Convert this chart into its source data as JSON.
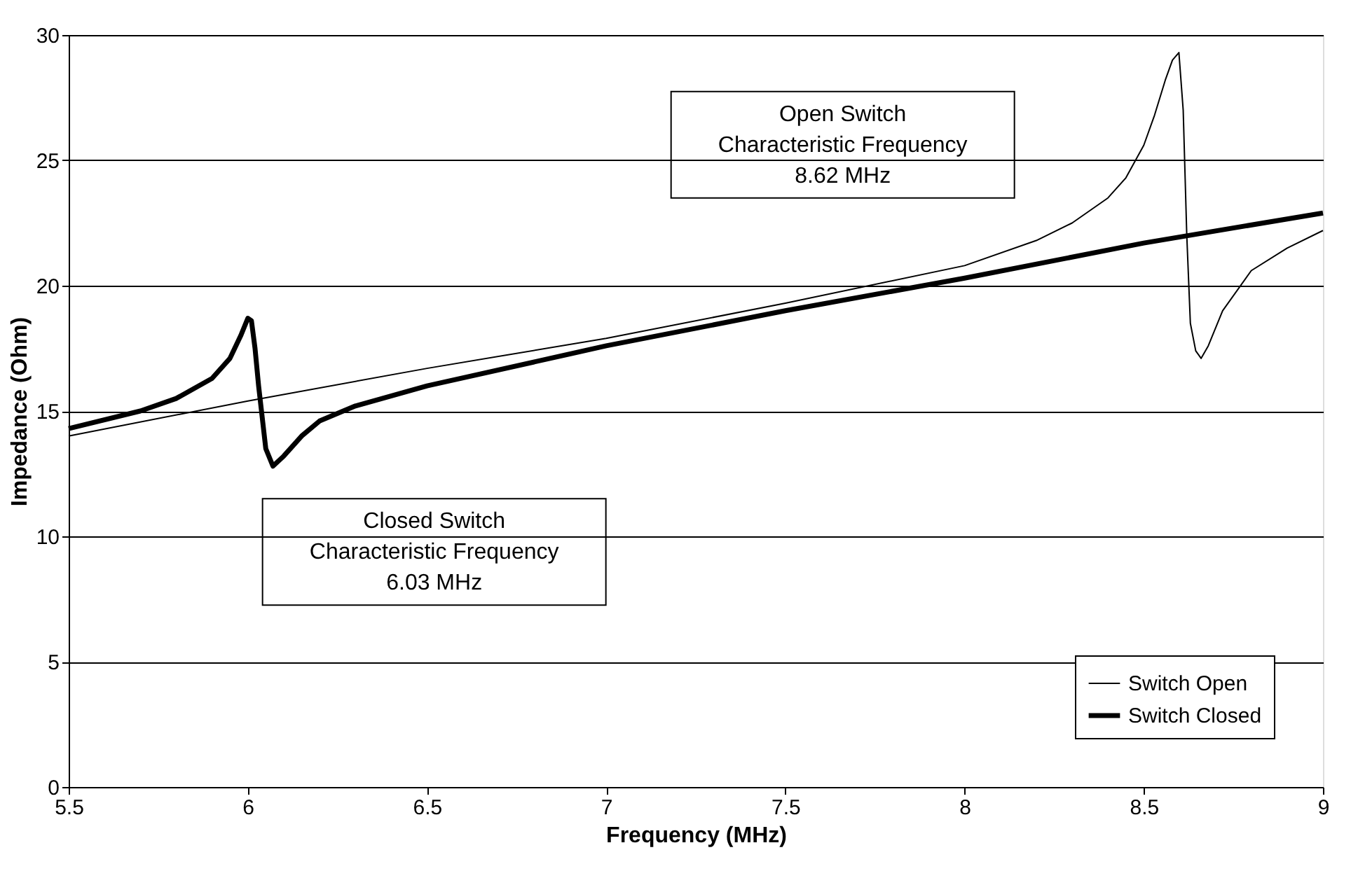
{
  "chart_data": {
    "type": "line",
    "xlabel": "Frequency (MHz)",
    "ylabel": "Impedance (Ohm)",
    "xlim": [
      5.5,
      9
    ],
    "xticks": [
      5.5,
      6,
      6.5,
      7,
      7.5,
      8,
      8.5,
      9
    ],
    "ylim": [
      0,
      30
    ],
    "yticks": [
      0,
      5,
      10,
      15,
      20,
      25,
      30
    ],
    "grid": "y",
    "legend": "bottom right",
    "line_style": "solid",
    "marker": "none",
    "series": [
      {
        "name": "Switch Open",
        "color": "#000000",
        "x": [
          5.5,
          6.0,
          6.5,
          7.0,
          7.5,
          8.0,
          8.2,
          8.3,
          8.4,
          8.45,
          8.5,
          8.53,
          8.56,
          8.58,
          8.598,
          8.61,
          8.62,
          8.63,
          8.645,
          8.66,
          8.68,
          8.72,
          8.8,
          8.9,
          9.0
        ],
        "values": [
          14.0,
          15.4,
          16.7,
          17.9,
          19.3,
          20.8,
          21.8,
          22.5,
          23.5,
          24.3,
          25.6,
          26.8,
          28.2,
          29.0,
          29.3,
          27.0,
          22.0,
          18.5,
          17.4,
          17.1,
          17.6,
          19.0,
          20.6,
          21.5,
          22.2
        ]
      },
      {
        "name": "Switch Closed",
        "color": "#000000",
        "x": [
          5.5,
          5.7,
          5.8,
          5.9,
          5.95,
          5.98,
          6.0,
          6.01,
          6.02,
          6.03,
          6.05,
          6.07,
          6.1,
          6.15,
          6.2,
          6.3,
          6.5,
          7.0,
          7.5,
          8.0,
          8.5,
          9.0
        ],
        "values": [
          14.3,
          15.0,
          15.5,
          16.3,
          17.1,
          18.0,
          18.7,
          18.6,
          17.5,
          16.0,
          13.5,
          12.8,
          13.2,
          14.0,
          14.6,
          15.2,
          16.0,
          17.6,
          19.0,
          20.3,
          21.7,
          22.9
        ]
      }
    ],
    "annotations": [
      "Open Switch\nCharacteristic Frequency\n8.62 MHz",
      "Closed Switch\nCharacteristic Frequency\n6.03 MHz"
    ]
  }
}
